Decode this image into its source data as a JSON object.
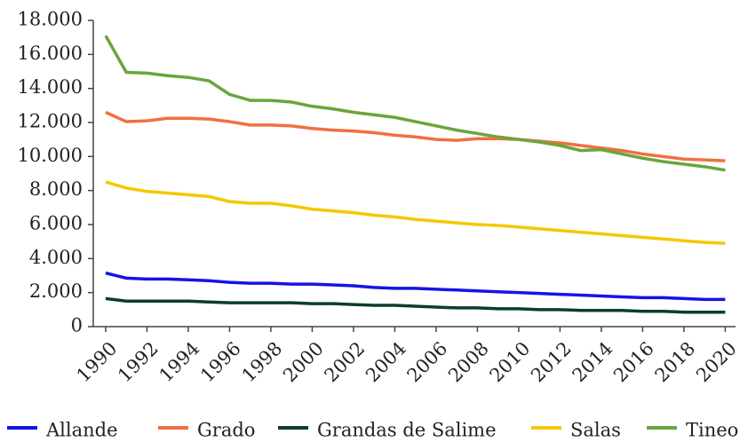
{
  "chart_data": {
    "type": "line",
    "x": [
      1990,
      1991,
      1992,
      1993,
      1994,
      1995,
      1996,
      1997,
      1998,
      1999,
      2000,
      2001,
      2002,
      2003,
      2004,
      2005,
      2006,
      2007,
      2008,
      2009,
      2010,
      2011,
      2012,
      2013,
      2014,
      2015,
      2016,
      2017,
      2018,
      2019,
      2020
    ],
    "xlim": [
      1989.4,
      2020.5
    ],
    "xticks": [
      1990,
      1992,
      1994,
      1996,
      1998,
      2000,
      2002,
      2004,
      2006,
      2008,
      2010,
      2012,
      2014,
      2016,
      2018,
      2020
    ],
    "ylim": [
      0,
      18000
    ],
    "yticks": [
      0,
      {
        "value": 2000,
        "label": "2.000"
      },
      {
        "value": 4000,
        "label": "4.000"
      },
      {
        "value": 6000,
        "label": "6.000"
      },
      {
        "value": 8000,
        "label": "8.000"
      },
      {
        "value": 10000,
        "label": "10.000"
      },
      {
        "value": 12000,
        "label": "12.000"
      },
      {
        "value": 14000,
        "label": "14.000"
      },
      {
        "value": 16000,
        "label": "16.000"
      },
      {
        "value": 18000,
        "label": "18.000"
      }
    ],
    "legend": "bottom",
    "series": [
      {
        "name": "Allande",
        "color": "#1414e6",
        "values": [
          3150,
          2850,
          2800,
          2800,
          2750,
          2700,
          2600,
          2550,
          2550,
          2500,
          2500,
          2450,
          2400,
          2300,
          2250,
          2250,
          2200,
          2150,
          2100,
          2050,
          2000,
          1950,
          1900,
          1850,
          1800,
          1750,
          1700,
          1700,
          1650,
          1600,
          1600
        ]
      },
      {
        "name": "Grado",
        "color": "#f07040",
        "values": [
          12600,
          12050,
          12100,
          12250,
          12250,
          12200,
          12050,
          11850,
          11850,
          11800,
          11650,
          11550,
          11500,
          11400,
          11250,
          11150,
          11000,
          10950,
          11050,
          11050,
          11000,
          10900,
          10800,
          10650,
          10500,
          10350,
          10150,
          10000,
          9850,
          9800,
          9750
        ]
      },
      {
        "name": "Grandas de Salime",
        "color": "#0b3d30",
        "values": [
          1650,
          1500,
          1500,
          1500,
          1500,
          1450,
          1400,
          1400,
          1400,
          1400,
          1350,
          1350,
          1300,
          1250,
          1250,
          1200,
          1150,
          1100,
          1100,
          1050,
          1050,
          1000,
          1000,
          950,
          950,
          950,
          900,
          900,
          850,
          850,
          850
        ]
      },
      {
        "name": "Salas",
        "color": "#f5c800",
        "values": [
          8500,
          8150,
          7950,
          7850,
          7750,
          7650,
          7350,
          7250,
          7250,
          7100,
          6900,
          6800,
          6700,
          6550,
          6450,
          6300,
          6200,
          6100,
          6000,
          5950,
          5850,
          5750,
          5650,
          5550,
          5450,
          5350,
          5250,
          5150,
          5050,
          4950,
          4900
        ]
      },
      {
        "name": "Tineo",
        "color": "#6aa53c",
        "values": [
          17100,
          14950,
          14900,
          14750,
          14650,
          14450,
          13650,
          13300,
          13300,
          13200,
          12950,
          12800,
          12600,
          12450,
          12300,
          12050,
          11800,
          11550,
          11350,
          11150,
          11000,
          10850,
          10650,
          10350,
          10400,
          10150,
          9900,
          9700,
          9550,
          9400,
          9200
        ]
      }
    ]
  }
}
